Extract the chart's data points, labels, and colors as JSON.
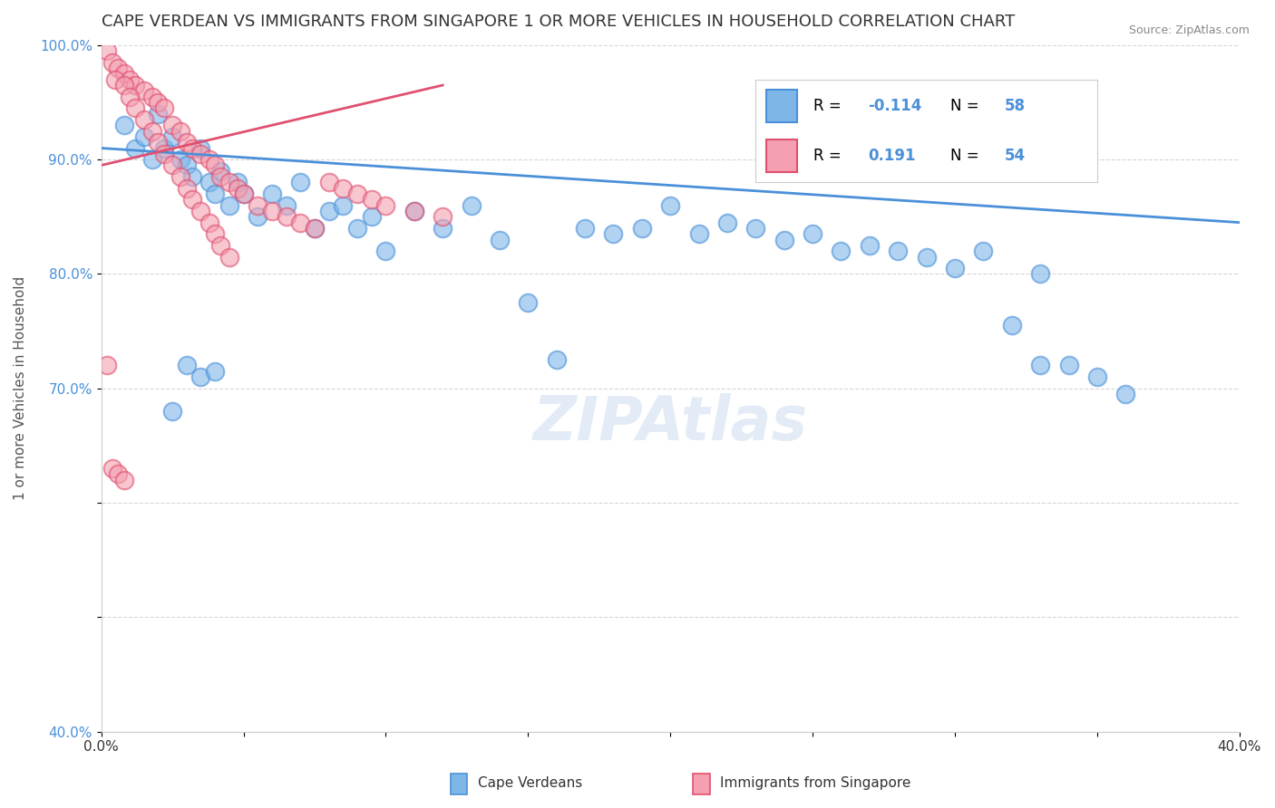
{
  "title": "CAPE VERDEAN VS IMMIGRANTS FROM SINGAPORE 1 OR MORE VEHICLES IN HOUSEHOLD CORRELATION CHART",
  "source": "Source: ZipAtlas.com",
  "ylabel": "1 or more Vehicles in Household",
  "xlim": [
    0.0,
    0.4
  ],
  "ylim": [
    0.4,
    1.0
  ],
  "xticks": [
    0.0,
    0.05,
    0.1,
    0.15,
    0.2,
    0.25,
    0.3,
    0.35,
    0.4
  ],
  "yticks": [
    0.4,
    0.5,
    0.6,
    0.7,
    0.8,
    0.9,
    1.0
  ],
  "ytick_labels": [
    "40.0%",
    "",
    "",
    "70.0%",
    "80.0%",
    "90.0%",
    "100.0%"
  ],
  "blue_color": "#7EB6E8",
  "pink_color": "#F4A0B0",
  "blue_edge_color": "#4A90D9",
  "pink_edge_color": "#E05070",
  "blue_trend_color": "#4A90D9",
  "pink_trend_color": "#E05070",
  "legend_R1": "-0.114",
  "legend_N1": "58",
  "legend_R2": "0.191",
  "legend_N2": "54",
  "legend_label1": "Cape Verdeans",
  "legend_label2": "Immigrants from Singapore",
  "blue_x": [
    0.008,
    0.012,
    0.015,
    0.018,
    0.02,
    0.022,
    0.025,
    0.028,
    0.03,
    0.032,
    0.035,
    0.038,
    0.04,
    0.042,
    0.045,
    0.048,
    0.05,
    0.055,
    0.06,
    0.065,
    0.07,
    0.075,
    0.08,
    0.085,
    0.09,
    0.095,
    0.1,
    0.11,
    0.12,
    0.13,
    0.14,
    0.15,
    0.16,
    0.17,
    0.18,
    0.19,
    0.2,
    0.21,
    0.22,
    0.23,
    0.24,
    0.25,
    0.26,
    0.27,
    0.28,
    0.29,
    0.3,
    0.31,
    0.32,
    0.33,
    0.34,
    0.35,
    0.36,
    0.025,
    0.03,
    0.035,
    0.04,
    0.33
  ],
  "blue_y": [
    0.93,
    0.91,
    0.92,
    0.9,
    0.94,
    0.91,
    0.92,
    0.9,
    0.895,
    0.885,
    0.91,
    0.88,
    0.87,
    0.89,
    0.86,
    0.88,
    0.87,
    0.85,
    0.87,
    0.86,
    0.88,
    0.84,
    0.855,
    0.86,
    0.84,
    0.85,
    0.82,
    0.855,
    0.84,
    0.86,
    0.83,
    0.775,
    0.725,
    0.84,
    0.835,
    0.84,
    0.86,
    0.835,
    0.845,
    0.84,
    0.83,
    0.835,
    0.82,
    0.825,
    0.82,
    0.815,
    0.805,
    0.82,
    0.755,
    0.72,
    0.72,
    0.71,
    0.695,
    0.68,
    0.72,
    0.71,
    0.715,
    0.8
  ],
  "pink_x": [
    0.002,
    0.004,
    0.006,
    0.008,
    0.01,
    0.012,
    0.015,
    0.018,
    0.02,
    0.022,
    0.025,
    0.028,
    0.03,
    0.032,
    0.035,
    0.038,
    0.04,
    0.042,
    0.045,
    0.048,
    0.05,
    0.055,
    0.06,
    0.065,
    0.07,
    0.075,
    0.08,
    0.085,
    0.09,
    0.095,
    0.1,
    0.11,
    0.12,
    0.005,
    0.008,
    0.01,
    0.012,
    0.015,
    0.018,
    0.02,
    0.022,
    0.025,
    0.028,
    0.03,
    0.032,
    0.035,
    0.038,
    0.04,
    0.042,
    0.045,
    0.002,
    0.004,
    0.006,
    0.008
  ],
  "pink_y": [
    0.995,
    0.985,
    0.98,
    0.975,
    0.97,
    0.965,
    0.96,
    0.955,
    0.95,
    0.945,
    0.93,
    0.925,
    0.915,
    0.91,
    0.905,
    0.9,
    0.895,
    0.885,
    0.88,
    0.875,
    0.87,
    0.86,
    0.855,
    0.85,
    0.845,
    0.84,
    0.88,
    0.875,
    0.87,
    0.865,
    0.86,
    0.855,
    0.85,
    0.97,
    0.965,
    0.955,
    0.945,
    0.935,
    0.925,
    0.915,
    0.905,
    0.895,
    0.885,
    0.875,
    0.865,
    0.855,
    0.845,
    0.835,
    0.825,
    0.815,
    0.72,
    0.63,
    0.625,
    0.62
  ],
  "blue_trend_x": [
    0.0,
    0.4
  ],
  "blue_trend_y": [
    0.91,
    0.845
  ],
  "pink_trend_x": [
    0.0,
    0.12
  ],
  "pink_trend_y": [
    0.895,
    0.965
  ],
  "background_color": "#FFFFFF",
  "grid_color": "#CCCCCC",
  "title_color": "#333333",
  "axis_label_color": "#555555",
  "ytick_color": "#4A90D9",
  "xtick_color": "#333333",
  "accent_blue": "#4A90D9"
}
